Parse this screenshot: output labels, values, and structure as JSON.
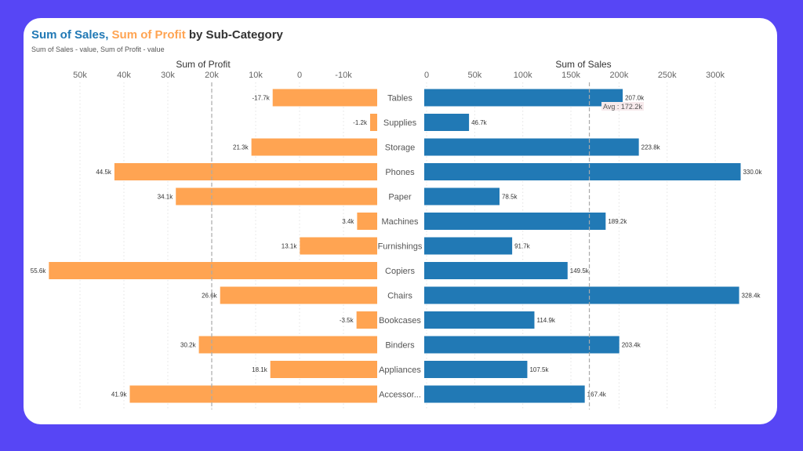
{
  "title": {
    "part1": "Sum of Sales",
    "sep": ", ",
    "part2": "Sum of Profit",
    "part3": " by Sub-Category"
  },
  "subtitle": "Sum of Sales - value, Sum of Profit - value",
  "colors": {
    "sales": "#2179B5",
    "profit": "#FFA452",
    "background": "#5746F5",
    "card": "#FFFFFF"
  },
  "chart_data": [
    {
      "type": "bar",
      "orientation": "horizontal",
      "title": "Sum of Profit",
      "x_direction": "reversed",
      "xlim": [
        -17.7,
        56
      ],
      "ticks": [
        {
          "label": "50k",
          "value": 50
        },
        {
          "label": "40k",
          "value": 40
        },
        {
          "label": "30k",
          "value": 30
        },
        {
          "label": "20k",
          "value": 20
        },
        {
          "label": "10k",
          "value": 10
        },
        {
          "label": "0",
          "value": 0
        },
        {
          "label": "-10k",
          "value": -10
        }
      ],
      "reference_line": {
        "value": 20
      },
      "categories": [
        "Tables",
        "Supplies",
        "Storage",
        "Phones",
        "Paper",
        "Machines",
        "Furnishings",
        "Copiers",
        "Chairs",
        "Bookcases",
        "Binders",
        "Appliances",
        "Accessor..."
      ],
      "values": [
        -17.7,
        -1.2,
        21.3,
        44.5,
        34.1,
        3.4,
        13.1,
        55.6,
        26.6,
        -3.5,
        30.2,
        18.1,
        41.9
      ],
      "value_labels": [
        "-17.7k",
        "-1.2k",
        "21.3k",
        "44.5k",
        "34.1k",
        "3.4k",
        "13.1k",
        "55.6k",
        "26.6k",
        "-3.5k",
        "30.2k",
        "18.1k",
        "41.9k"
      ],
      "unit": "thousands"
    },
    {
      "type": "bar",
      "orientation": "horizontal",
      "title": "Sum of Sales",
      "xlim": [
        0,
        330
      ],
      "ticks": [
        {
          "label": "0",
          "value": 0
        },
        {
          "label": "50k",
          "value": 50
        },
        {
          "label": "100k",
          "value": 100
        },
        {
          "label": "150k",
          "value": 150
        },
        {
          "label": "200k",
          "value": 200
        },
        {
          "label": "250k",
          "value": 250
        },
        {
          "label": "300k",
          "value": 300
        }
      ],
      "reference_line": {
        "label": "Avg : 172.2k",
        "value": 172.2
      },
      "categories": [
        "Tables",
        "Supplies",
        "Storage",
        "Phones",
        "Paper",
        "Machines",
        "Furnishings",
        "Copiers",
        "Chairs",
        "Bookcases",
        "Binders",
        "Appliances",
        "Accessor..."
      ],
      "values": [
        207.0,
        46.7,
        223.8,
        330.0,
        78.5,
        189.2,
        91.7,
        149.5,
        328.4,
        114.9,
        203.4,
        107.5,
        167.4
      ],
      "value_labels": [
        "207.0k",
        "46.7k",
        "223.8k",
        "330.0k",
        "78.5k",
        "189.2k",
        "91.7k",
        "149.5k",
        "328.4k",
        "114.9k",
        "203.4k",
        "107.5k",
        "167.4k"
      ],
      "unit": "thousands"
    }
  ]
}
